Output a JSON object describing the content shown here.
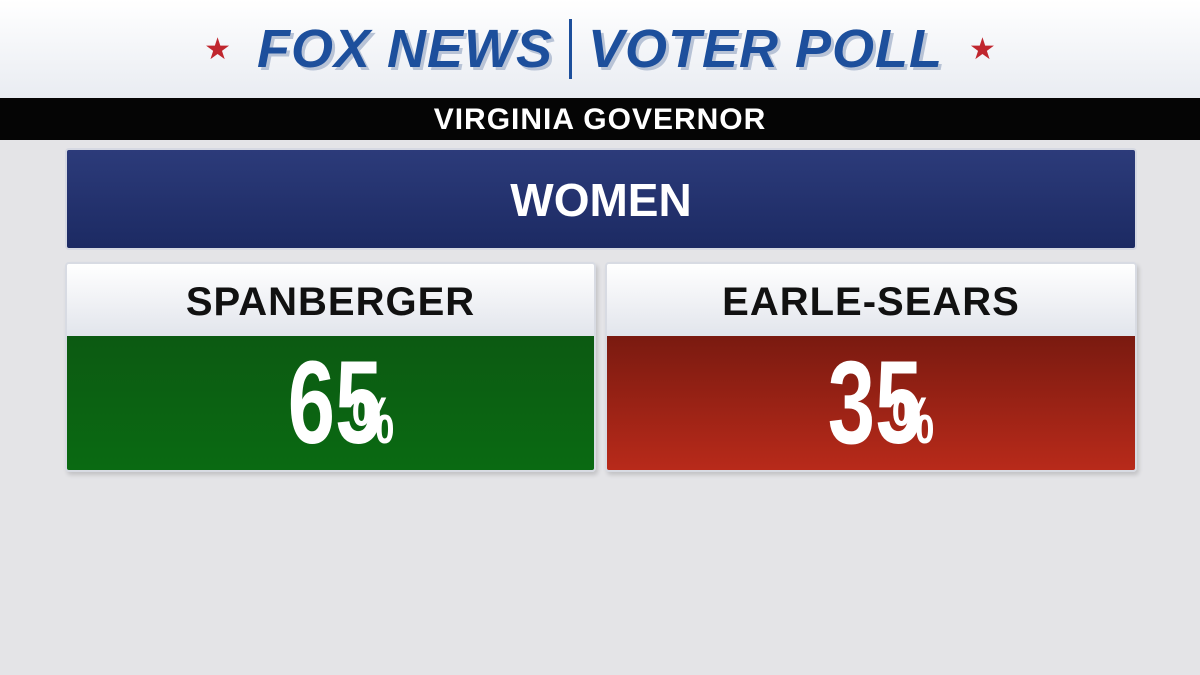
{
  "header": {
    "brand": "FOX NEWS",
    "title": "VOTER POLL",
    "race": "VIRGINIA GOVERNOR"
  },
  "group": "WOMEN",
  "results": [
    {
      "name": "SPANBERGER",
      "value": 65,
      "unit": "%"
    },
    {
      "name": "EARLE-SEARS",
      "value": 35,
      "unit": "%"
    }
  ]
}
